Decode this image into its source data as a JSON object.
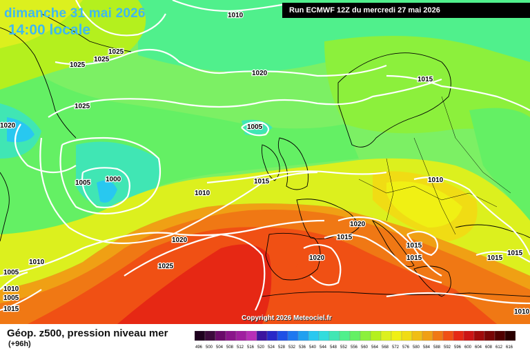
{
  "header": {
    "date": "dimanche 31 mai 2026",
    "time": "14:00 locale",
    "run": "Run ECMWF 12Z du mercredi 27 mai 2026"
  },
  "copyright": "Copyright 2026 Meteociel.fr",
  "legend": {
    "title": "Géop. z500, pression niveau mer",
    "subtitle": "(+96h)",
    "scale_values": [
      "496",
      "500",
      "504",
      "508",
      "512",
      "516",
      "520",
      "524",
      "528",
      "532",
      "536",
      "540",
      "544",
      "548",
      "552",
      "556",
      "560",
      "564",
      "568",
      "572",
      "576",
      "580",
      "584",
      "588",
      "592",
      "596",
      "600",
      "604",
      "608",
      "612",
      "616"
    ],
    "scale_colors": [
      "#1e001e",
      "#3c0a3c",
      "#6a0a6a",
      "#8a148a",
      "#a01ea0",
      "#b82eb8",
      "#3c14a0",
      "#2828c8",
      "#1e50e6",
      "#1e78f0",
      "#20a0f0",
      "#28c8f0",
      "#32dcdc",
      "#40e6b4",
      "#50f08c",
      "#64f064",
      "#8cf03c",
      "#b4f01e",
      "#dcf01e",
      "#f0f014",
      "#f0dc14",
      "#f0be14",
      "#f0a014",
      "#f07814",
      "#f05014",
      "#e62814",
      "#cc1414",
      "#a00a0a",
      "#780505",
      "#500000",
      "#2a0000"
    ]
  },
  "isobars": [
    {
      "id": "iso-1010-top",
      "text": "1010"
    },
    {
      "id": "iso-1025-a",
      "text": "1025"
    },
    {
      "id": "iso-1025-b",
      "text": "1025"
    },
    {
      "id": "iso-1025-c",
      "text": "1025"
    },
    {
      "id": "iso-1020-north",
      "text": "1020"
    },
    {
      "id": "iso-1025-d",
      "text": "1025"
    },
    {
      "id": "iso-1020-west",
      "text": "1020"
    },
    {
      "id": "iso-1005-mid",
      "text": "1005"
    },
    {
      "id": "iso-1005-low",
      "text": "1005"
    },
    {
      "id": "iso-1000-low",
      "text": "1000"
    },
    {
      "id": "iso-1015-mid",
      "text": "1015"
    },
    {
      "id": "iso-1010-mid",
      "text": "1010"
    },
    {
      "id": "iso-1015-scand",
      "text": "1015"
    },
    {
      "id": "iso-1010-east",
      "text": "1010"
    },
    {
      "id": "iso-1020-alps",
      "text": "1020"
    },
    {
      "id": "iso-1015-france",
      "text": "1015"
    },
    {
      "id": "iso-1015-italy",
      "text": "1015"
    },
    {
      "id": "iso-1015-balkan",
      "text": "1015"
    },
    {
      "id": "iso-1015-greece",
      "text": "1015"
    },
    {
      "id": "iso-1015-se",
      "text": "1015"
    },
    {
      "id": "iso-1020-atl",
      "text": "1020"
    },
    {
      "id": "iso-1025-atl",
      "text": "1025"
    },
    {
      "id": "iso-1020-spain",
      "text": "1020"
    },
    {
      "id": "iso-1010-sw",
      "text": "1010"
    },
    {
      "id": "iso-1005-sw",
      "text": "1005"
    },
    {
      "id": "iso-1010-sw2",
      "text": "1010"
    },
    {
      "id": "iso-1005-sw2",
      "text": "1005"
    },
    {
      "id": "iso-1015-sw",
      "text": "1015"
    },
    {
      "id": "iso-1010-far-east",
      "text": "1010"
    }
  ]
}
